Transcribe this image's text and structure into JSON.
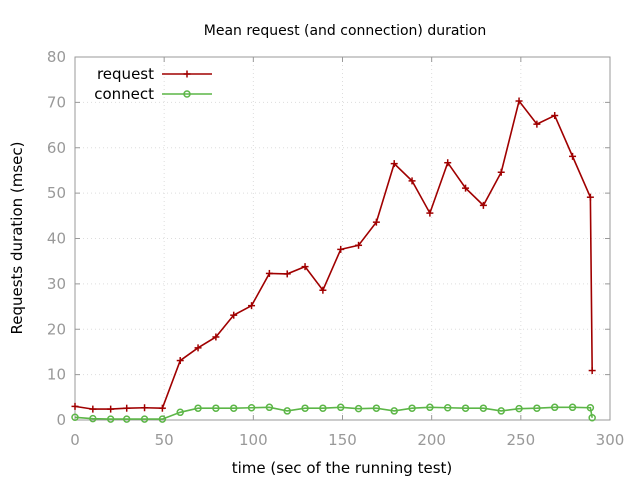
{
  "chart_data": {
    "type": "line",
    "title": "Mean request (and connection) duration",
    "xlabel": "time (sec of the running test)",
    "ylabel": "Requests duration (msec)",
    "xlim": [
      0,
      300
    ],
    "ylim": [
      0,
      80
    ],
    "xticks": [
      "0",
      "50",
      "100",
      "150",
      "200",
      "250",
      "300"
    ],
    "yticks": [
      "0",
      "10",
      "20",
      "30",
      "40",
      "50",
      "60",
      "70",
      "80"
    ],
    "grid": true,
    "legend_position": "top-left",
    "series": [
      {
        "name": "request",
        "color": "#a00000",
        "marker": "plus",
        "x": [
          0,
          10,
          20,
          29,
          39,
          49,
          59,
          69,
          79,
          89,
          99,
          109,
          119,
          129,
          139,
          149,
          159,
          169,
          179,
          189,
          199,
          209,
          219,
          229,
          239,
          249,
          259,
          269,
          279,
          289,
          290
        ],
        "y": [
          3.0,
          2.4,
          2.4,
          2.6,
          2.7,
          2.6,
          13.1,
          15.9,
          18.3,
          23.1,
          25.2,
          32.3,
          32.2,
          33.8,
          28.6,
          37.6,
          38.5,
          43.6,
          56.5,
          52.7,
          45.6,
          56.7,
          51.1,
          47.3,
          54.6,
          70.3,
          65.2,
          67.1,
          58.1,
          49.1,
          10.9
        ]
      },
      {
        "name": "connect",
        "color": "#5cb647",
        "marker": "circle",
        "x": [
          0,
          10,
          20,
          29,
          39,
          49,
          59,
          69,
          79,
          89,
          99,
          109,
          119,
          129,
          139,
          149,
          159,
          169,
          179,
          189,
          199,
          209,
          219,
          229,
          239,
          249,
          259,
          269,
          279,
          289,
          290
        ],
        "y": [
          0.6,
          0.3,
          0.2,
          0.2,
          0.2,
          0.2,
          1.7,
          2.6,
          2.6,
          2.6,
          2.7,
          2.8,
          2.0,
          2.6,
          2.6,
          2.8,
          2.5,
          2.6,
          2.0,
          2.6,
          2.8,
          2.7,
          2.6,
          2.6,
          2.0,
          2.5,
          2.6,
          2.8,
          2.8,
          2.7,
          0.5
        ]
      }
    ]
  }
}
